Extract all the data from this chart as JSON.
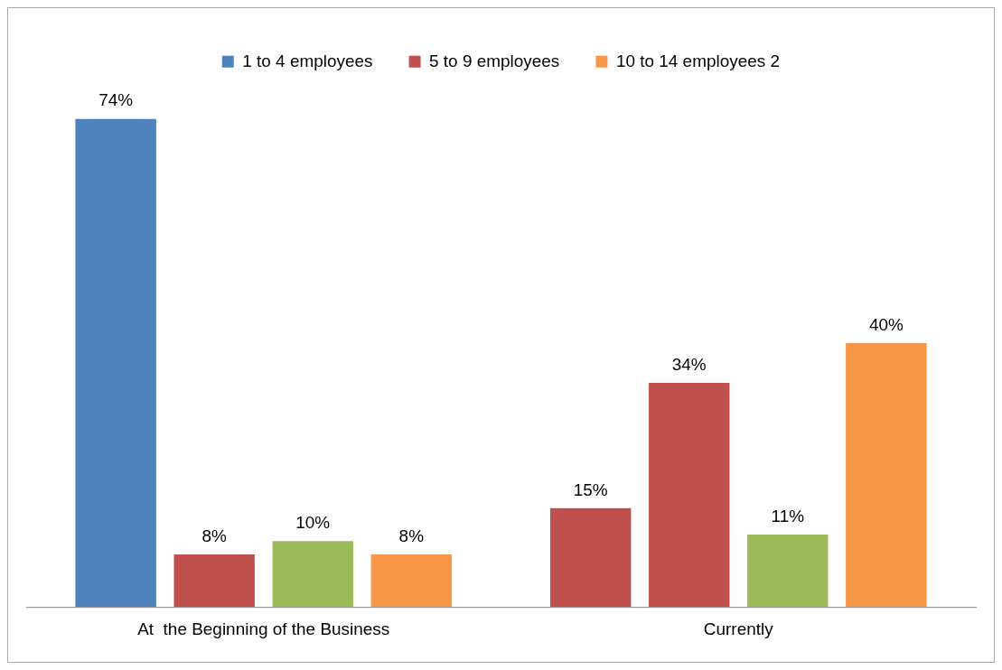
{
  "chart_data": {
    "type": "bar",
    "categories": [
      "At  the Beginning of the Business",
      "Currently"
    ],
    "series": [
      {
        "name": "1 to 4 employees",
        "color": "#4f81bd",
        "colors": [
          "#4f81bd",
          "#c0504d"
        ],
        "values": [
          74,
          15
        ],
        "value_labels": [
          "74%",
          "15%"
        ]
      },
      {
        "name": "5 to 9 employees",
        "color": "#c0504d",
        "values": [
          8,
          34
        ],
        "value_labels": [
          "8%",
          "34%"
        ]
      },
      {
        "color": "#9bbb59",
        "values": [
          10,
          11
        ],
        "value_labels": [
          "10%",
          "11%"
        ]
      },
      {
        "name": "10 to 14 employees 2",
        "color": "#f79646",
        "values": [
          8,
          40
        ],
        "value_labels": [
          "8%",
          "40%"
        ]
      }
    ],
    "legend": "top",
    "grid": false
  }
}
